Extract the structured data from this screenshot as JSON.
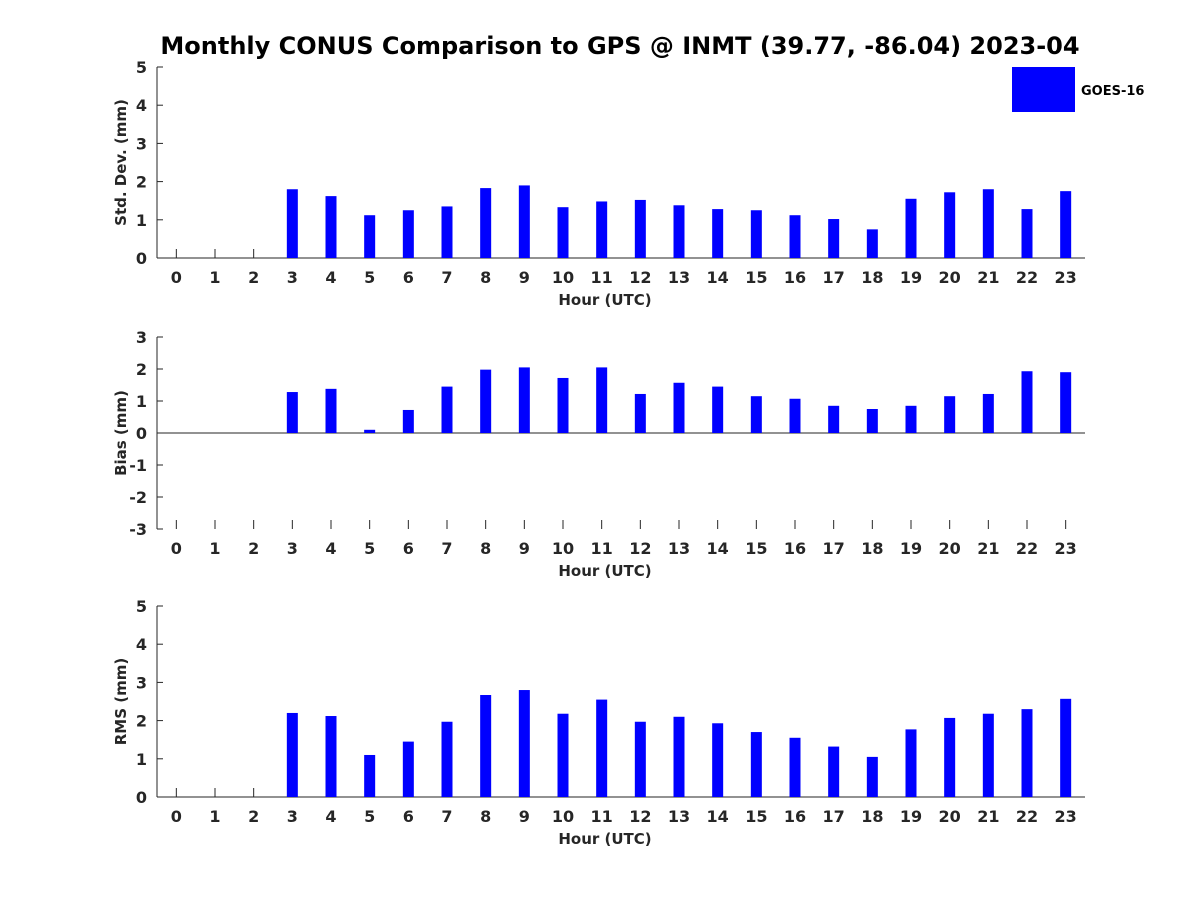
{
  "title": "Monthly CONUS Comparison to GPS @ INMT (39.77, -86.04) 2023-04",
  "legend": {
    "label": "GOES-16",
    "color": "#0000ff"
  },
  "chart_data": [
    {
      "type": "bar",
      "name": "std",
      "xlabel": "Hour (UTC)",
      "ylabel": "Std. Dev. (mm)",
      "ylim": [
        0,
        5
      ],
      "yticks": [
        0,
        1,
        2,
        3,
        4,
        5
      ],
      "categories": [
        "0",
        "1",
        "2",
        "3",
        "4",
        "5",
        "6",
        "7",
        "8",
        "9",
        "10",
        "11",
        "12",
        "13",
        "14",
        "15",
        "16",
        "17",
        "18",
        "19",
        "20",
        "21",
        "22",
        "23"
      ],
      "series": [
        {
          "name": "GOES-16",
          "color": "#0000ff",
          "values": [
            null,
            null,
            null,
            1.8,
            1.62,
            1.12,
            1.25,
            1.35,
            1.83,
            1.9,
            1.33,
            1.48,
            1.52,
            1.38,
            1.28,
            1.25,
            1.12,
            1.02,
            0.75,
            1.55,
            1.72,
            1.8,
            1.28,
            1.75
          ]
        }
      ]
    },
    {
      "type": "bar",
      "name": "bias",
      "xlabel": "Hour (UTC)",
      "ylabel": "Bias (mm)",
      "ylim": [
        -3,
        3
      ],
      "yticks": [
        -3,
        -2,
        -1,
        0,
        1,
        2,
        3
      ],
      "categories": [
        "0",
        "1",
        "2",
        "3",
        "4",
        "5",
        "6",
        "7",
        "8",
        "9",
        "10",
        "11",
        "12",
        "13",
        "14",
        "15",
        "16",
        "17",
        "18",
        "19",
        "20",
        "21",
        "22",
        "23"
      ],
      "series": [
        {
          "name": "GOES-16",
          "color": "#0000ff",
          "values": [
            null,
            null,
            null,
            1.28,
            1.38,
            0.1,
            0.72,
            1.45,
            1.98,
            2.05,
            1.72,
            2.05,
            1.22,
            1.57,
            1.45,
            1.15,
            1.07,
            0.85,
            0.75,
            0.85,
            1.15,
            1.22,
            1.93,
            1.9
          ]
        }
      ]
    },
    {
      "type": "bar",
      "name": "rms",
      "xlabel": "Hour (UTC)",
      "ylabel": "RMS (mm)",
      "ylim": [
        0,
        5
      ],
      "yticks": [
        0,
        1,
        2,
        3,
        4,
        5
      ],
      "categories": [
        "0",
        "1",
        "2",
        "3",
        "4",
        "5",
        "6",
        "7",
        "8",
        "9",
        "10",
        "11",
        "12",
        "13",
        "14",
        "15",
        "16",
        "17",
        "18",
        "19",
        "20",
        "21",
        "22",
        "23"
      ],
      "series": [
        {
          "name": "GOES-16",
          "color": "#0000ff",
          "values": [
            null,
            null,
            null,
            2.2,
            2.12,
            1.1,
            1.45,
            1.97,
            2.67,
            2.8,
            2.18,
            2.55,
            1.97,
            2.1,
            1.93,
            1.7,
            1.55,
            1.32,
            1.05,
            1.77,
            2.07,
            2.18,
            2.3,
            2.57
          ]
        }
      ]
    }
  ]
}
